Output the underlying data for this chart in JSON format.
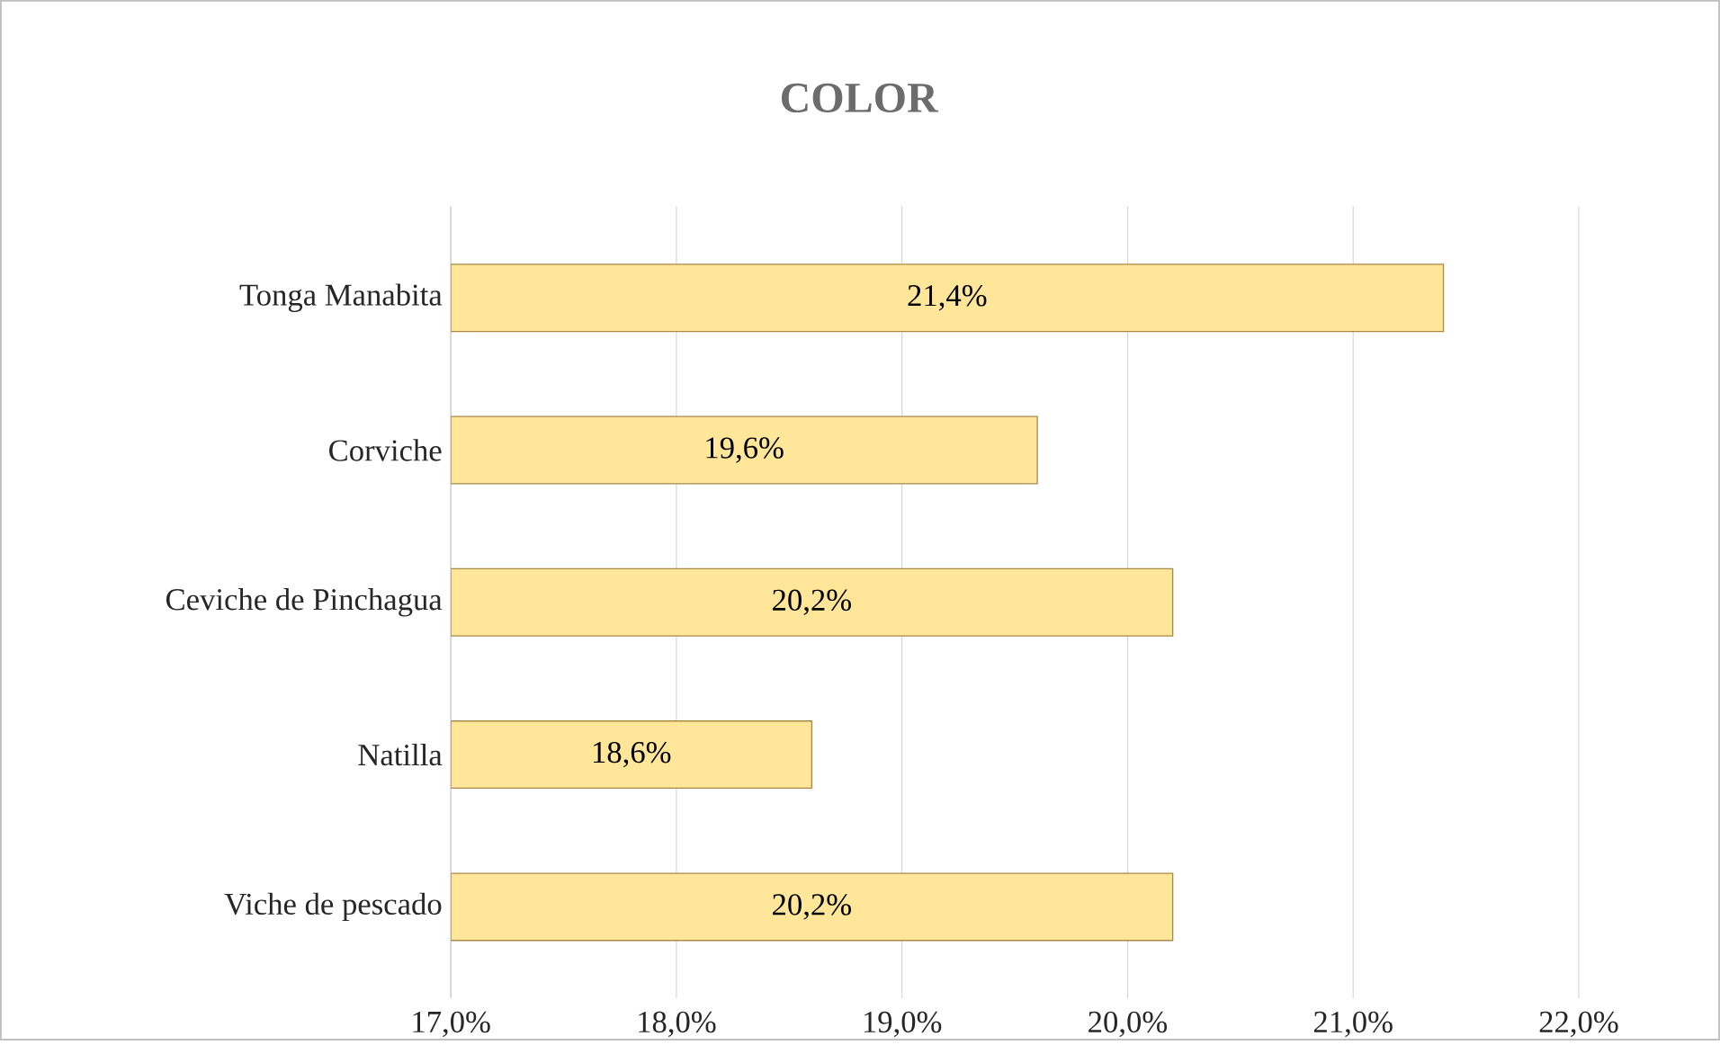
{
  "chart_data": {
    "type": "bar",
    "orientation": "horizontal",
    "title": "COLOR",
    "categories": [
      "Tonga Manabita",
      "Corviche",
      "Ceviche de Pinchagua",
      "Natilla",
      "Viche de pescado"
    ],
    "values": [
      21.4,
      19.6,
      20.2,
      18.6,
      20.2
    ],
    "value_labels": [
      "21,4%",
      "19,6%",
      "20,2%",
      "18,6%",
      "20,2%"
    ],
    "color": "#ffe699",
    "xlim": [
      17,
      22
    ],
    "xticks": [
      {
        "value": 17,
        "label": "17,0%"
      },
      {
        "value": 18,
        "label": "18,0%"
      },
      {
        "value": 19,
        "label": "19,0%"
      },
      {
        "value": 20,
        "label": "20,0%"
      },
      {
        "value": 21,
        "label": "21,0%"
      },
      {
        "value": 22,
        "label": "22,0%"
      }
    ],
    "grid": "x"
  }
}
